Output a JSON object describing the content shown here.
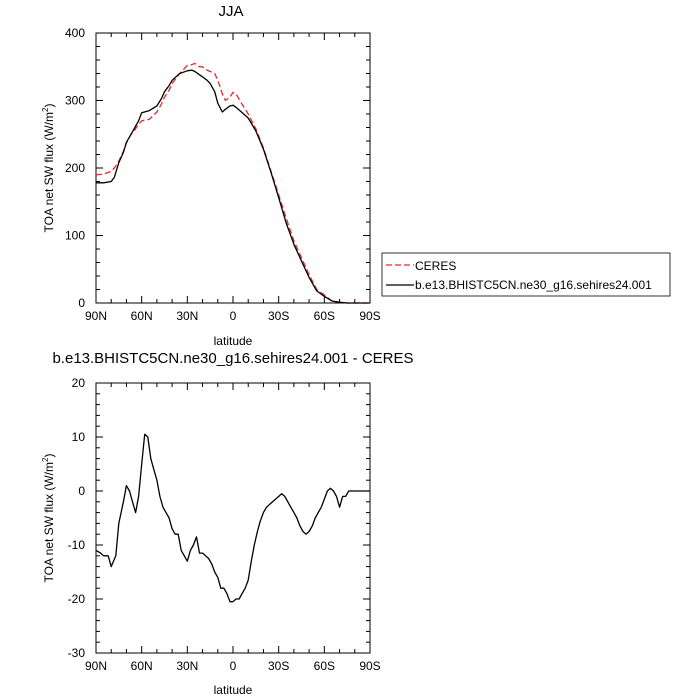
{
  "chart_data": [
    {
      "type": "line",
      "title": "JJA",
      "xlabel": "latitude",
      "ylabel_main": "TOA net SW flux (W/m",
      "ylabel_sup": "2",
      "ylabel_end": ")",
      "xlim": [
        90,
        -90
      ],
      "ylim": [
        0,
        400
      ],
      "xticks": [
        90,
        60,
        30,
        0,
        -30,
        -60,
        -90
      ],
      "xtick_labels": [
        "90N",
        "60N",
        "30N",
        "0",
        "30S",
        "60S",
        "90S"
      ],
      "yticks": [
        0,
        100,
        200,
        300,
        400
      ],
      "ytick_labels": [
        "0",
        "100",
        "200",
        "300",
        "400"
      ],
      "legend_position": "right",
      "series": [
        {
          "name": "CERES",
          "color": "#e8282b",
          "dash": "dashed",
          "x": [
            90,
            85,
            80,
            78,
            75,
            72,
            70,
            67,
            65,
            62,
            60,
            55,
            50,
            47,
            45,
            42,
            40,
            35,
            30,
            27,
            25,
            22,
            20,
            17,
            15,
            12,
            10,
            7,
            5,
            2,
            0,
            -2,
            -5,
            -10,
            -15,
            -20,
            -25,
            -30,
            -35,
            -40,
            -45,
            -50,
            -55,
            -60,
            -65,
            -70,
            -75,
            -80,
            -85,
            -90
          ],
          "y": [
            190,
            191,
            195,
            200,
            210,
            225,
            237,
            250,
            255,
            265,
            270,
            272,
            283,
            295,
            305,
            315,
            325,
            340,
            352,
            353,
            355,
            350,
            350,
            345,
            343,
            340,
            330,
            310,
            300,
            305,
            312,
            310,
            298,
            280,
            258,
            230,
            195,
            160,
            125,
            92,
            67,
            42,
            20,
            12,
            3,
            1,
            0,
            0,
            0,
            0
          ]
        },
        {
          "name": "b.e13.BHISTC5CN.ne30_g16.sehires24.001",
          "color": "#000000",
          "dash": "solid",
          "x": [
            90,
            85,
            80,
            78,
            75,
            72,
            70,
            67,
            65,
            62,
            60,
            55,
            50,
            47,
            45,
            42,
            40,
            35,
            30,
            27,
            25,
            22,
            20,
            17,
            15,
            12,
            10,
            7,
            5,
            2,
            0,
            -2,
            -5,
            -10,
            -15,
            -20,
            -25,
            -30,
            -35,
            -40,
            -45,
            -50,
            -55,
            -60,
            -65,
            -70,
            -75,
            -80,
            -85,
            -90
          ],
          "y": [
            178,
            178,
            180,
            186,
            208,
            223,
            238,
            250,
            258,
            270,
            282,
            285,
            292,
            303,
            313,
            322,
            330,
            340,
            344,
            345,
            343,
            338,
            335,
            330,
            325,
            313,
            296,
            283,
            287,
            292,
            293,
            290,
            284,
            274,
            255,
            228,
            193,
            156,
            118,
            87,
            62,
            38,
            18,
            10,
            3,
            1,
            0,
            0,
            0,
            0
          ]
        }
      ]
    },
    {
      "type": "line",
      "title": "b.e13.BHISTC5CN.ne30_g16.sehires24.001 - CERES",
      "xlabel": "latitude",
      "ylabel_main": "TOA net SW flux (W/m",
      "ylabel_sup": "2",
      "ylabel_end": ")",
      "xlim": [
        90,
        -90
      ],
      "ylim": [
        -30,
        20
      ],
      "xticks": [
        90,
        60,
        30,
        0,
        -30,
        -60,
        -90
      ],
      "xtick_labels": [
        "90N",
        "60N",
        "30N",
        "0",
        "30S",
        "60S",
        "90S"
      ],
      "yticks": [
        -30,
        -20,
        -10,
        0,
        10,
        20
      ],
      "ytick_labels": [
        "-30",
        "-20",
        "-10",
        "0",
        "10",
        "20"
      ],
      "series": [
        {
          "name": "",
          "color": "#000000",
          "dash": "solid",
          "x": [
            90,
            87,
            85,
            82,
            80,
            77,
            75,
            72,
            70,
            68,
            66,
            64,
            62,
            60,
            58,
            56,
            54,
            52,
            50,
            48,
            46,
            44,
            42,
            40,
            38,
            36,
            34,
            32,
            30,
            28,
            26,
            24,
            22,
            20,
            18,
            16,
            14,
            12,
            10,
            8,
            6,
            4,
            2,
            0,
            -2,
            -4,
            -6,
            -8,
            -10,
            -12,
            -14,
            -16,
            -18,
            -20,
            -22,
            -24,
            -26,
            -28,
            -30,
            -32,
            -34,
            -36,
            -38,
            -40,
            -42,
            -44,
            -46,
            -48,
            -50,
            -52,
            -54,
            -56,
            -58,
            -60,
            -62,
            -64,
            -66,
            -68,
            -70,
            -72,
            -74,
            -76,
            -78,
            -80,
            -85,
            -90
          ],
          "y": [
            -11,
            -11.5,
            -12,
            -12,
            -14,
            -12,
            -6,
            -2,
            1,
            0,
            -2,
            -4,
            -1,
            5,
            10.5,
            10,
            6,
            4,
            2,
            -1,
            -3,
            -4,
            -5,
            -7,
            -8,
            -8,
            -11,
            -12,
            -13,
            -11,
            -10,
            -8.5,
            -11.5,
            -11.5,
            -12,
            -12.5,
            -13.5,
            -15,
            -16,
            -18,
            -18,
            -19,
            -20.5,
            -20.5,
            -20,
            -20,
            -19,
            -18,
            -16.5,
            -13,
            -10,
            -7.5,
            -5.5,
            -4,
            -3,
            -2.5,
            -2,
            -1.5,
            -1,
            -0.5,
            -1,
            -2,
            -3,
            -4,
            -5,
            -6.5,
            -7.5,
            -8,
            -7.5,
            -6.5,
            -5,
            -4,
            -3,
            -1.5,
            0,
            0.5,
            0,
            -1,
            -3,
            -1,
            -1,
            0,
            0,
            0,
            0,
            0
          ]
        }
      ]
    }
  ]
}
